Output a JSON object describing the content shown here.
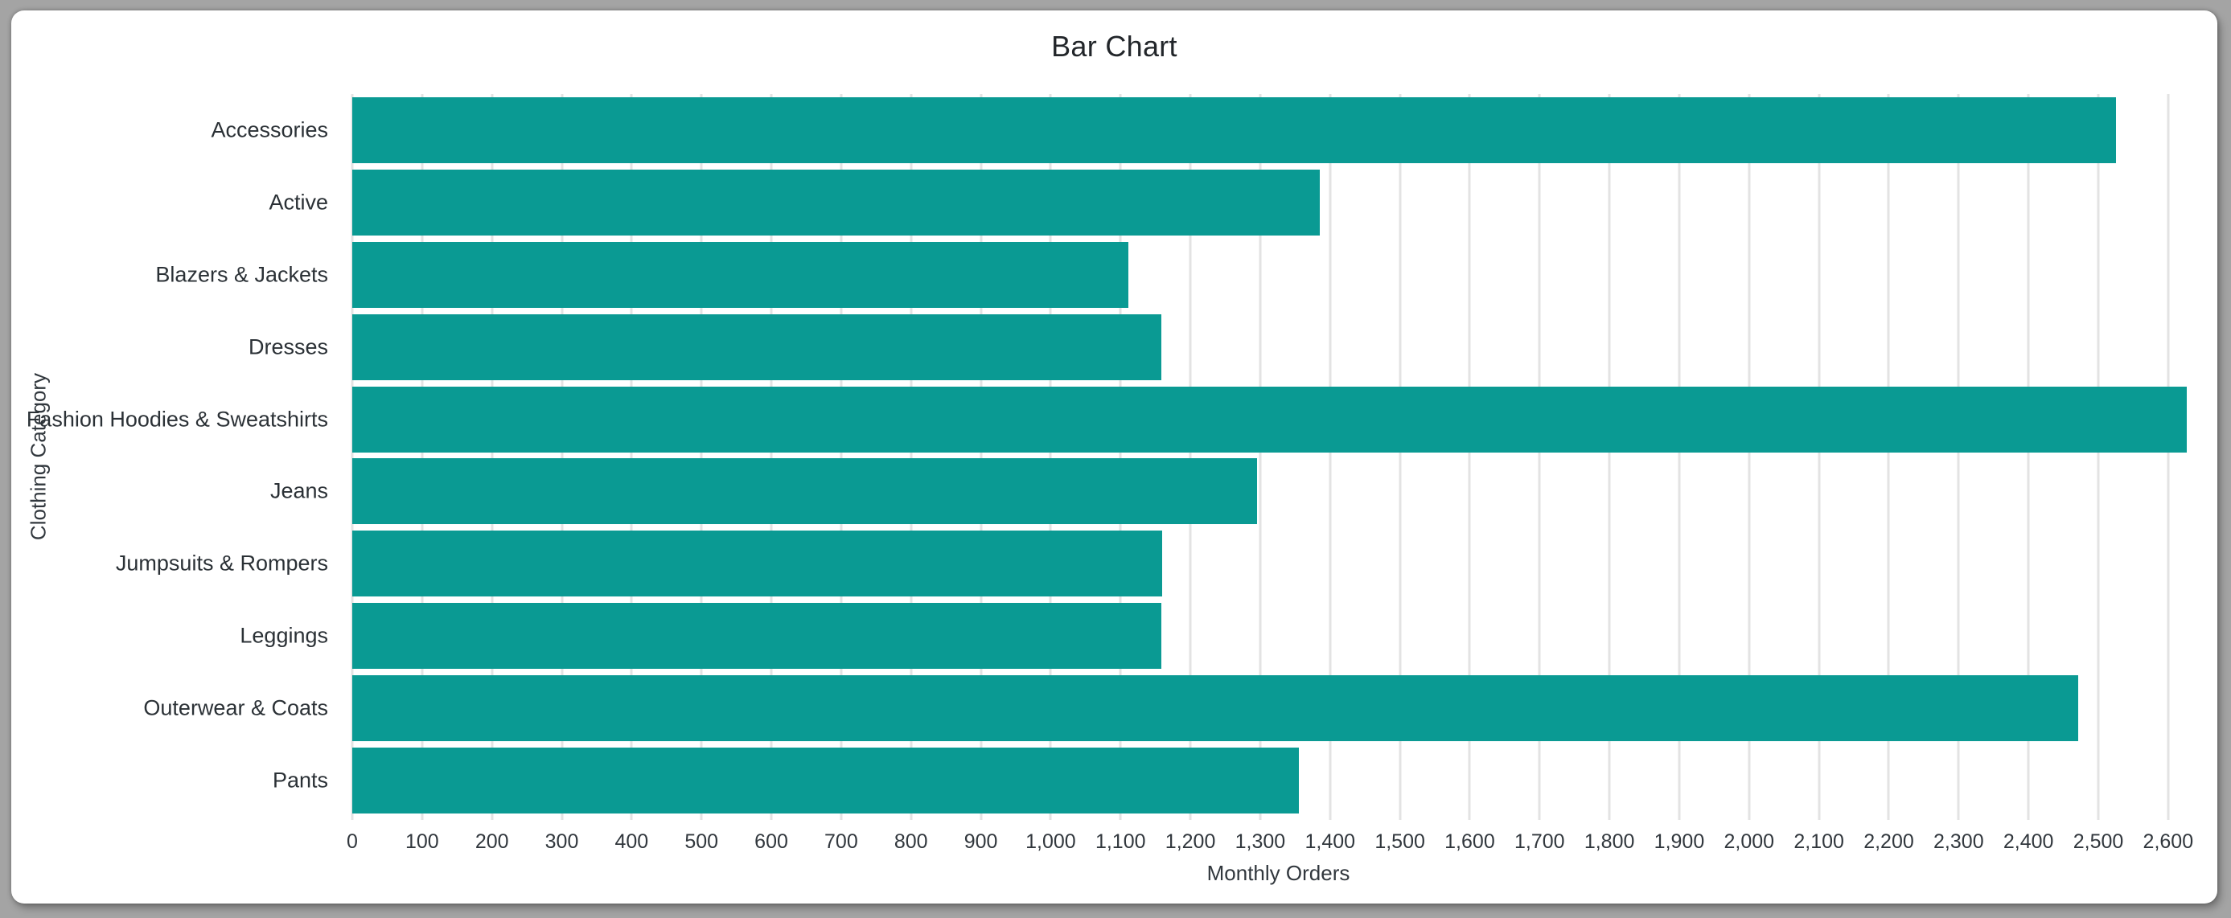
{
  "frame": {
    "background_color": "#a4a4a4",
    "card_color": "#ffffff"
  },
  "chart_data": {
    "type": "bar",
    "orientation": "horizontal",
    "title": "Bar Chart",
    "xlabel": "Monthly Orders",
    "ylabel": "Clothing Category",
    "categories": [
      "Accessories",
      "Active",
      "Blazers & Jackets",
      "Dresses",
      "Fashion Hoodies & Sweatshirts",
      "Jeans",
      "Jumpsuits & Rompers",
      "Leggings",
      "Outerwear & Coats",
      "Pants"
    ],
    "values": [
      2525,
      1385,
      1111,
      1159,
      2627,
      1295,
      1160,
      1158,
      2471,
      1355
    ],
    "xlim": [
      0,
      2652
    ],
    "x_tick_interval": 100,
    "x_tick_labels": [
      "0",
      "100",
      "200",
      "300",
      "400",
      "500",
      "600",
      "700",
      "800",
      "900",
      "1,000",
      "1,100",
      "1,200",
      "1,300",
      "1,400",
      "1,500",
      "1,600",
      "1,700",
      "1,800",
      "1,900",
      "2,000",
      "2,100",
      "2,200",
      "2,300",
      "2,400",
      "2,500",
      "2,600"
    ],
    "grid": true,
    "legend": "none",
    "bar_color": "#0a9a93",
    "grid_color": "#e3e3e3",
    "text_color": "#2b3136",
    "title_color": "#22262a"
  }
}
